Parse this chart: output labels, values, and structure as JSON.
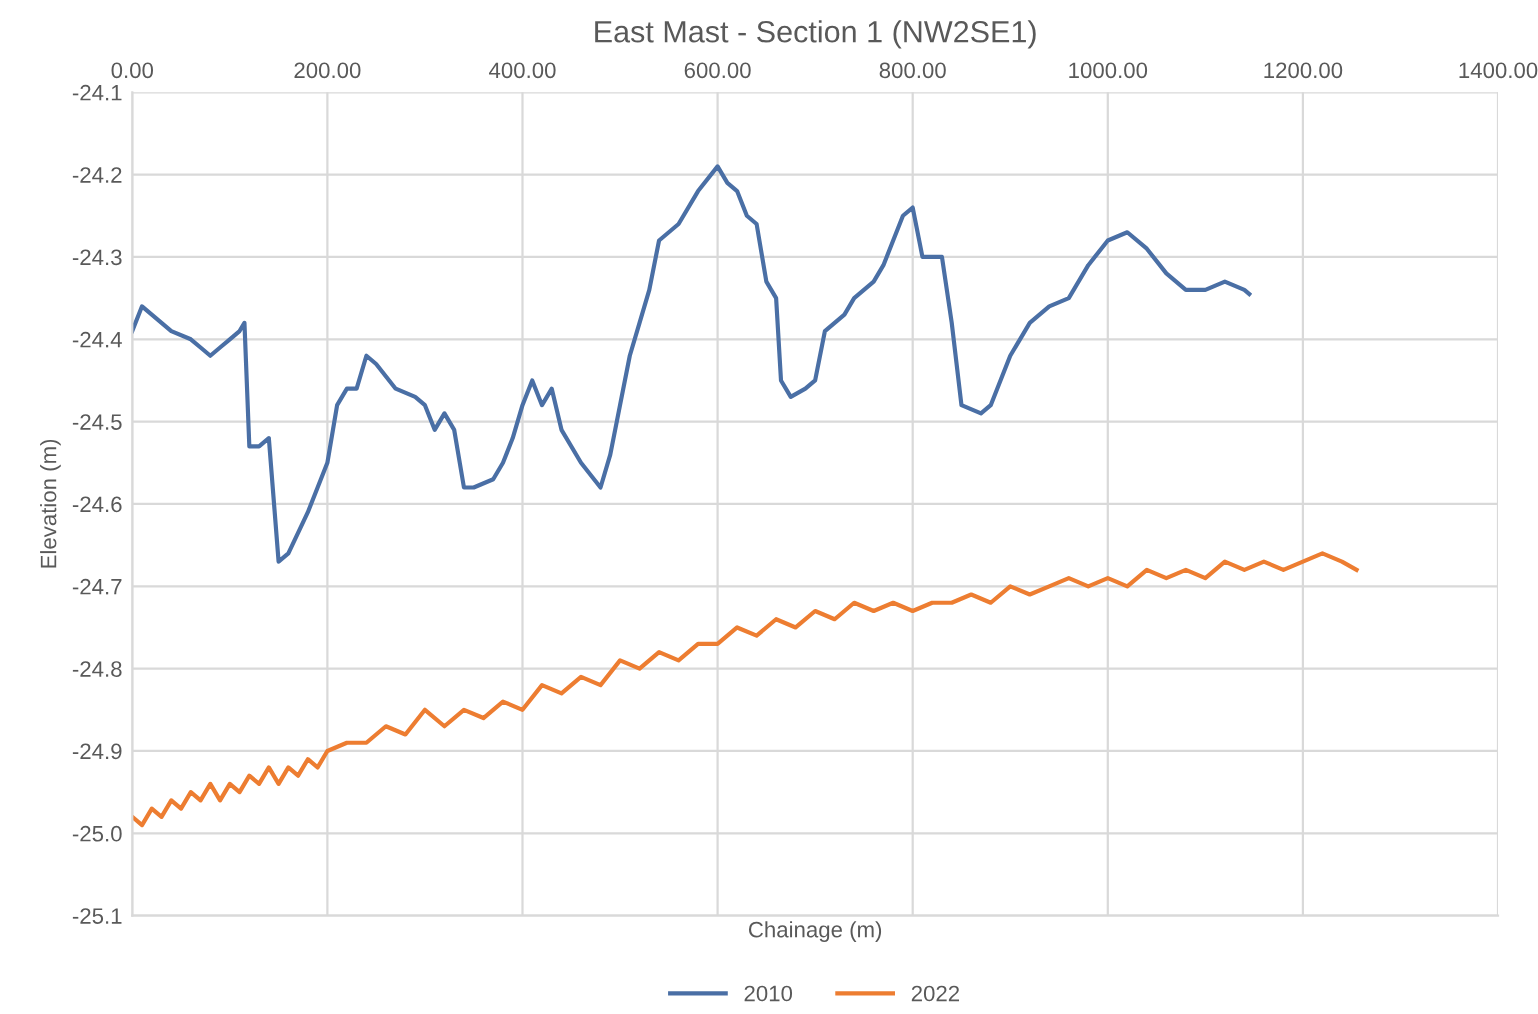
{
  "chart_data": {
    "type": "line",
    "title": "East Mast - Section 1 (NW2SE1)",
    "xlabel": "Chainage (m)",
    "ylabel": "Elevation (m)",
    "xlim": [
      0,
      1400
    ],
    "xticks": [
      {
        "value": 0,
        "label": "0.00"
      },
      {
        "value": 200,
        "label": "200.00"
      },
      {
        "value": 400,
        "label": "400.00"
      },
      {
        "value": 600,
        "label": "600.00"
      },
      {
        "value": 800,
        "label": "800.00"
      },
      {
        "value": 1000,
        "label": "1000.00"
      },
      {
        "value": 1200,
        "label": "1200.00"
      },
      {
        "value": 1400,
        "label": "1400.00"
      }
    ],
    "ylim": [
      -25.1,
      -24.1
    ],
    "yticks": [
      {
        "value": -25.1,
        "label": "-25.1"
      },
      {
        "value": -25.0,
        "label": "-25.0"
      },
      {
        "value": -24.9,
        "label": "-24.9"
      },
      {
        "value": -24.8,
        "label": "-24.8"
      },
      {
        "value": -24.7,
        "label": "-24.7"
      },
      {
        "value": -24.6,
        "label": "-24.6"
      },
      {
        "value": -24.5,
        "label": "-24.5"
      },
      {
        "value": -24.4,
        "label": "-24.4"
      },
      {
        "value": -24.3,
        "label": "-24.3"
      },
      {
        "value": -24.2,
        "label": "-24.2"
      },
      {
        "value": -24.1,
        "label": "-24.1"
      }
    ],
    "grid": true,
    "legend": "bottom",
    "marker": "none",
    "line_style": "solid",
    "series": [
      {
        "name": "2010",
        "color": "#4a6fa5",
        "x": [
          0,
          10,
          20,
          40,
          60,
          70,
          80,
          90,
          100,
          110,
          115,
          120,
          130,
          140,
          150,
          160,
          180,
          190,
          200,
          210,
          220,
          230,
          240,
          250,
          270,
          290,
          300,
          310,
          320,
          330,
          340,
          350,
          370,
          380,
          390,
          400,
          410,
          420,
          430,
          440,
          460,
          480,
          490,
          500,
          510,
          520,
          530,
          540,
          560,
          580,
          600,
          610,
          620,
          630,
          640,
          650,
          660,
          665,
          675,
          690,
          700,
          710,
          730,
          740,
          760,
          770,
          790,
          800,
          810,
          830,
          840,
          850,
          870,
          880,
          900,
          920,
          940,
          960,
          980,
          1000,
          1020,
          1040,
          1060,
          1080,
          1100,
          1120,
          1140,
          1145
        ],
        "values": [
          -24.39,
          -24.36,
          -24.37,
          -24.39,
          -24.4,
          -24.41,
          -24.42,
          -24.41,
          -24.4,
          -24.39,
          -24.38,
          -24.53,
          -24.53,
          -24.52,
          -24.67,
          -24.66,
          -24.61,
          -24.58,
          -24.55,
          -24.48,
          -24.46,
          -24.46,
          -24.42,
          -24.43,
          -24.46,
          -24.47,
          -24.48,
          -24.51,
          -24.49,
          -24.51,
          -24.58,
          -24.58,
          -24.57,
          -24.55,
          -24.52,
          -24.48,
          -24.45,
          -24.48,
          -24.46,
          -24.51,
          -24.55,
          -24.58,
          -24.54,
          -24.48,
          -24.42,
          -24.38,
          -24.34,
          -24.28,
          -24.26,
          -24.22,
          -24.19,
          -24.21,
          -24.22,
          -24.25,
          -24.26,
          -24.33,
          -24.35,
          -24.45,
          -24.47,
          -24.46,
          -24.45,
          -24.39,
          -24.37,
          -24.35,
          -24.33,
          -24.31,
          -24.25,
          -24.24,
          -24.3,
          -24.3,
          -24.38,
          -24.48,
          -24.49,
          -24.48,
          -24.42,
          -24.38,
          -24.36,
          -24.35,
          -24.31,
          -24.28,
          -24.27,
          -24.29,
          -24.32,
          -24.34,
          -24.34,
          -24.33,
          -24.34,
          -24.345
        ]
      },
      {
        "name": "2022",
        "color": "#ed7d31",
        "x": [
          0,
          10,
          20,
          30,
          40,
          50,
          60,
          70,
          80,
          90,
          100,
          110,
          120,
          130,
          140,
          150,
          160,
          170,
          180,
          190,
          200,
          220,
          240,
          260,
          280,
          300,
          320,
          340,
          360,
          380,
          400,
          420,
          440,
          460,
          480,
          500,
          520,
          540,
          560,
          580,
          600,
          620,
          640,
          660,
          680,
          700,
          720,
          740,
          760,
          780,
          800,
          820,
          840,
          860,
          880,
          900,
          920,
          940,
          960,
          980,
          1000,
          1020,
          1040,
          1060,
          1080,
          1100,
          1120,
          1140,
          1160,
          1180,
          1200,
          1220,
          1240,
          1255
        ],
        "values": [
          -24.98,
          -24.99,
          -24.97,
          -24.98,
          -24.96,
          -24.97,
          -24.95,
          -24.96,
          -24.94,
          -24.96,
          -24.94,
          -24.95,
          -24.93,
          -24.94,
          -24.92,
          -24.94,
          -24.92,
          -24.93,
          -24.91,
          -24.92,
          -24.9,
          -24.89,
          -24.89,
          -24.87,
          -24.88,
          -24.85,
          -24.87,
          -24.85,
          -24.86,
          -24.84,
          -24.85,
          -24.82,
          -24.83,
          -24.81,
          -24.82,
          -24.79,
          -24.8,
          -24.78,
          -24.79,
          -24.77,
          -24.77,
          -24.75,
          -24.76,
          -24.74,
          -24.75,
          -24.73,
          -24.74,
          -24.72,
          -24.73,
          -24.72,
          -24.73,
          -24.72,
          -24.72,
          -24.71,
          -24.72,
          -24.7,
          -24.71,
          -24.7,
          -24.69,
          -24.7,
          -24.69,
          -24.7,
          -24.68,
          -24.69,
          -24.68,
          -24.69,
          -24.67,
          -24.68,
          -24.67,
          -24.68,
          -24.67,
          -24.66,
          -24.67,
          -24.68
        ]
      }
    ]
  }
}
